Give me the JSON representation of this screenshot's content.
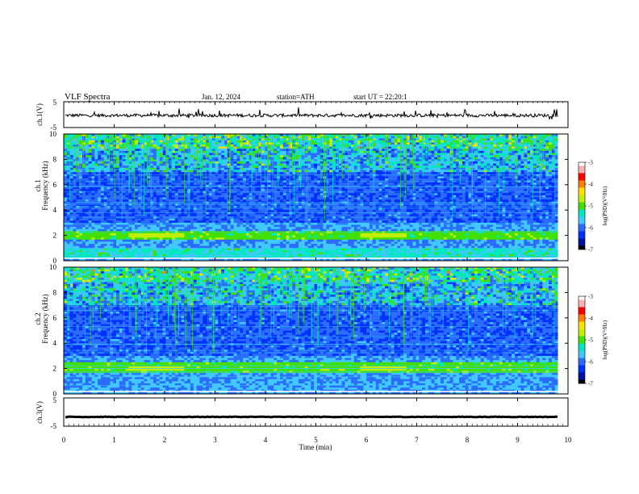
{
  "header": {
    "title": "VLF Spectra",
    "date": "Jan. 12, 2024",
    "station": "station=ATH",
    "start": "start UT = 22:20:1"
  },
  "colors": {
    "colormap": [
      "#000000",
      "#0010a0",
      "#0030ff",
      "#2a6cff",
      "#40c8ff",
      "#00e8c0",
      "#40e000",
      "#c0f000",
      "#ffe000",
      "#ff8000",
      "#ff0000",
      "#ffb0b0",
      "#ffffff"
    ],
    "trace": "#000000"
  },
  "chart_data": [
    {
      "type": "line",
      "name": "ch1-waveform",
      "ylabel": "ch.1(V)",
      "ylim": [
        -5,
        5
      ],
      "yticks": [
        "5",
        "-5"
      ],
      "xlim": [
        0,
        10
      ],
      "description_values": {
        "mean": -0.3,
        "amplitude_approx": 1.2
      }
    },
    {
      "type": "heatmap",
      "name": "ch1-spectrogram",
      "ylabel": "ch.1\nFrequency (kHz)",
      "ylim": [
        0,
        10
      ],
      "yticks": [
        "0",
        "2",
        "4",
        "6",
        "8",
        "10"
      ],
      "xlim": [
        0,
        9.8
      ],
      "colorbar": {
        "label": "log(PSD)(V²/Hz)",
        "range": [
          -7,
          -3
        ],
        "ticks": [
          "-3",
          "-4",
          "-5",
          "-6",
          "-7"
        ]
      },
      "features": {
        "strong_band_kHz": [
          1.9,
          2.1
        ],
        "strong_band_segments_min": [
          [
            1.3,
            2.4
          ],
          [
            5.9,
            6.8
          ]
        ],
        "low_freq_noise_band_kHz": [
          0.2,
          1.0
        ]
      }
    },
    {
      "type": "heatmap",
      "name": "ch2-spectrogram",
      "ylabel": "ch.2\nFrequency (kHz)",
      "ylim": [
        0,
        10
      ],
      "yticks": [
        "0",
        "2",
        "4",
        "6",
        "8",
        "10"
      ],
      "xlim": [
        0,
        9.8
      ],
      "colorbar": {
        "label": "log(PSD)(V²/Hz)",
        "range": [
          -7,
          -3
        ],
        "ticks": [
          "-3",
          "-4",
          "-5",
          "-6",
          "-7"
        ]
      },
      "features": {
        "strong_band_kHz": [
          1.9,
          2.2
        ],
        "strong_band_segments_min": [
          [
            1.3,
            2.4
          ],
          [
            5.9,
            6.8
          ]
        ]
      }
    },
    {
      "type": "line",
      "name": "ch3-waveform",
      "ylabel": "ch.3(V)",
      "ylim": [
        -5,
        5
      ],
      "yticks": [
        "5",
        "-5"
      ],
      "xlim": [
        0,
        10
      ],
      "description_values": {
        "mean": -1.7,
        "amplitude_approx": 0.2
      }
    }
  ],
  "xaxis": {
    "label": "Time (min)",
    "ticks": [
      "0",
      "1",
      "2",
      "3",
      "4",
      "5",
      "6",
      "7",
      "8",
      "9",
      "10"
    ],
    "range": [
      0,
      10
    ]
  }
}
